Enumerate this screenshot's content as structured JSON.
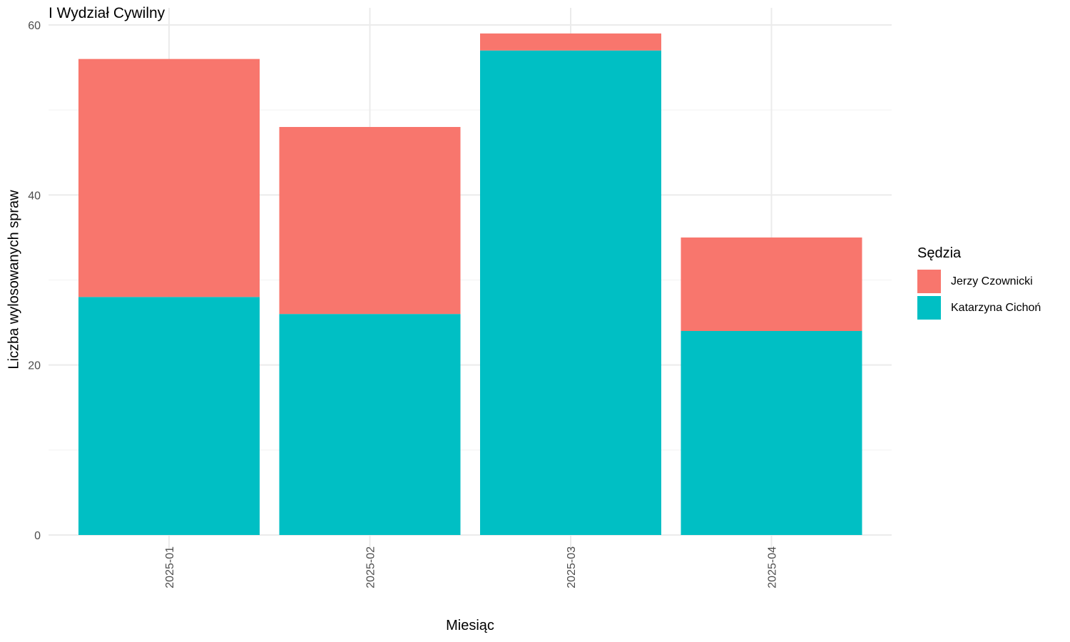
{
  "chart_data": {
    "type": "bar",
    "stacked": true,
    "title": "I Wydział Cywilny",
    "xlabel": "Miesiąc",
    "ylabel": "Liczba wylosowanych spraw",
    "categories": [
      "2025-01",
      "2025-02",
      "2025-03",
      "2025-04"
    ],
    "series": [
      {
        "name": "Katarzyna Cichoń",
        "values": [
          28,
          26,
          57,
          24
        ],
        "color": "#00BFC4"
      },
      {
        "name": "Jerzy Czownicki",
        "values": [
          28,
          22,
          2,
          11
        ],
        "color": "#F8766D"
      }
    ],
    "ylim": [
      0,
      60
    ],
    "yticks": [
      0,
      20,
      40,
      60
    ],
    "grid": true,
    "legend": {
      "title": "Sędzia",
      "position": "right",
      "items": [
        {
          "label": "Jerzy Czownicki",
          "color": "#F8766D"
        },
        {
          "label": "Katarzyna Cichoń",
          "color": "#00BFC4"
        }
      ]
    }
  }
}
